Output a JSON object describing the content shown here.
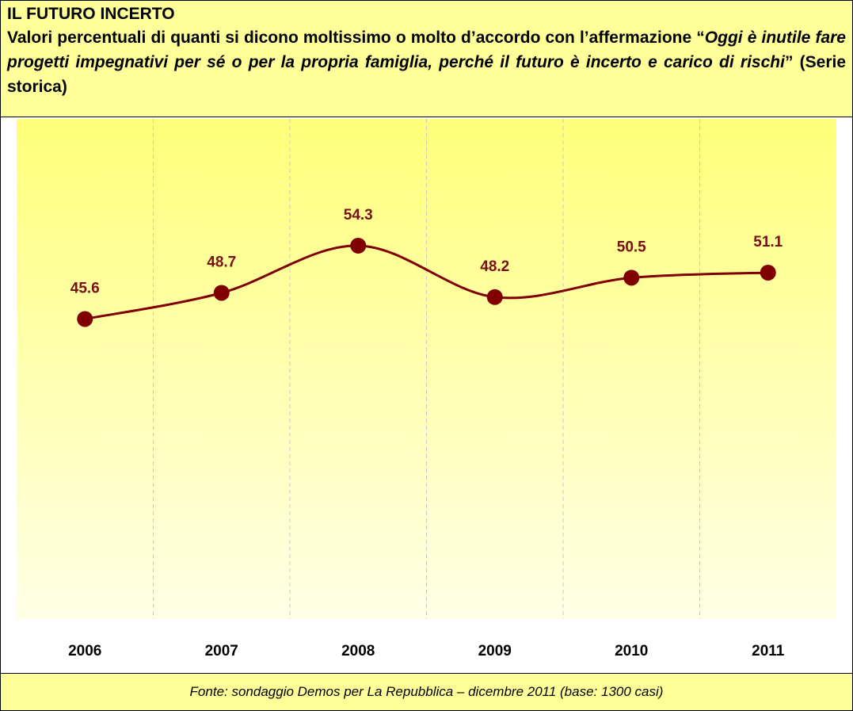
{
  "chart_data": {
    "type": "line",
    "title": "IL FUTURO INCERTO",
    "subtitle": [
      "Valori percentuali di quanti si dicono moltissimo o molto d’accordo con l’affermazione “",
      "Oggi è inutile fare progetti impegnativi per sé o per la propria famiglia, perché il futuro è incerto e carico di rischi",
      "” (Serie storica)"
    ],
    "categories": [
      "2006",
      "2007",
      "2008",
      "2009",
      "2010",
      "2011"
    ],
    "values": [
      45.6,
      48.7,
      54.3,
      48.2,
      50.5,
      51.1
    ],
    "color": "#800000",
    "ylim": [
      10,
      70
    ],
    "source": "Fonte: sondaggio Demos per La Repubblica – dicembre 2011 (base: 1300 casi)"
  }
}
